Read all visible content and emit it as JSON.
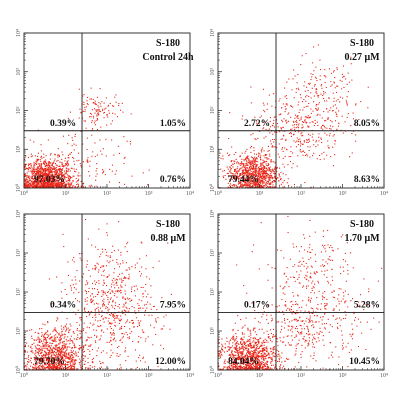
{
  "figure_type": "flow cytometry dot plot grid",
  "colors": {
    "dots": "#e8281a",
    "axes": "#222222",
    "gates": "#1a1a1a"
  },
  "chart_data": [
    {
      "type": "scatter",
      "title": "S-180",
      "subtitle": "Control 24h",
      "xscale": "log",
      "yscale": "log",
      "xlim": [
        1,
        10000
      ],
      "ylim": [
        1,
        10000
      ],
      "x_tick_labels": [
        "10⁰",
        "10¹",
        "10²",
        "10³",
        "10⁴"
      ],
      "y_tick_labels": [
        "10⁰",
        "10¹",
        "10²",
        "10³",
        "10⁴"
      ],
      "gate_x": 25,
      "gate_y": 30,
      "quadrants": {
        "upper_left": "0.39%",
        "upper_right": "1.05%",
        "lower_left": "97.03%",
        "lower_right": "0.76%"
      }
    },
    {
      "type": "scatter",
      "title": "S-180",
      "subtitle": "0.27 μM",
      "xscale": "log",
      "yscale": "log",
      "xlim": [
        1,
        10000
      ],
      "ylim": [
        1,
        10000
      ],
      "x_tick_labels": [
        "10⁰",
        "10¹",
        "10²",
        "10³",
        "10⁴"
      ],
      "y_tick_labels": [
        "10⁰",
        "10¹",
        "10²",
        "10³",
        "10⁴"
      ],
      "gate_x": 25,
      "gate_y": 30,
      "quadrants": {
        "upper_left": "2.72%",
        "upper_right": "8.05%",
        "lower_left": "79.44%",
        "lower_right": "8.63%"
      }
    },
    {
      "type": "scatter",
      "title": "S-180",
      "subtitle": "0.88 μM",
      "xscale": "log",
      "yscale": "log",
      "xlim": [
        1,
        10000
      ],
      "ylim": [
        1,
        10000
      ],
      "x_tick_labels": [
        "10⁰",
        "10¹",
        "10²",
        "10³",
        "10⁴"
      ],
      "y_tick_labels": [
        "10⁰",
        "10¹",
        "10²",
        "10³",
        "10⁴"
      ],
      "gate_x": 25,
      "gate_y": 30,
      "quadrants": {
        "upper_left": "0.34%",
        "upper_right": "7.95%",
        "lower_left": "79.70%",
        "lower_right": "12.00%"
      }
    },
    {
      "type": "scatter",
      "title": "S-180",
      "subtitle": "1.70 μM",
      "xscale": "log",
      "yscale": "log",
      "xlim": [
        1,
        10000
      ],
      "ylim": [
        1,
        10000
      ],
      "x_tick_labels": [
        "10⁰",
        "10¹",
        "10²",
        "10³",
        "10⁴"
      ],
      "y_tick_labels": [
        "10⁰",
        "10¹",
        "10²",
        "10³",
        "10⁴"
      ],
      "gate_x": 25,
      "gate_y": 30,
      "quadrants": {
        "upper_left": "0.17%",
        "upper_right": "5.28%",
        "lower_left": "84.04%",
        "lower_right": "10.45%"
      }
    }
  ]
}
